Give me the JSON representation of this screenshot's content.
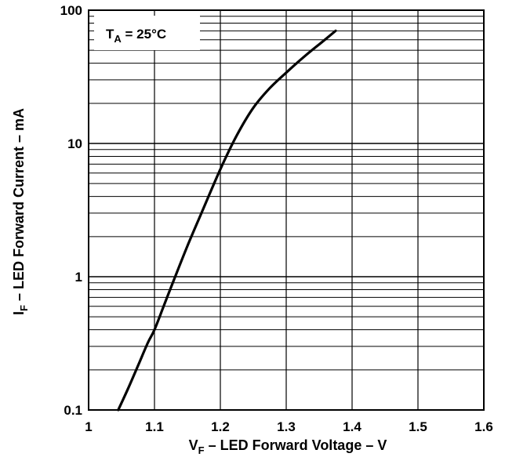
{
  "chart_data": {
    "type": "line",
    "xscale": "linear",
    "yscale": "log",
    "xlim": [
      1.0,
      1.6
    ],
    "ylim": [
      0.1,
      100
    ],
    "x_ticks": [
      1.0,
      1.1,
      1.2,
      1.3,
      1.4,
      1.5,
      1.6
    ],
    "x_tick_labels": [
      "1",
      "1.1",
      "1.2",
      "1.3",
      "1.4",
      "1.5",
      "1.6"
    ],
    "y_ticks": [
      0.1,
      1,
      10,
      100
    ],
    "y_tick_labels": [
      "0.1",
      "1",
      "10",
      "100"
    ],
    "grid": true,
    "xlabel": {
      "main": "V",
      "sub": "F",
      "rest": " – LED Forward Voltage – V"
    },
    "ylabel": {
      "main": "I",
      "sub": "F",
      "rest": " – LED Forward Current – mA"
    },
    "annotation": {
      "main": "T",
      "sub": "A",
      "rest": " = 25°C"
    },
    "series": [
      {
        "color": "#000000",
        "x": [
          1.045,
          1.06,
          1.075,
          1.09,
          1.1,
          1.115,
          1.13,
          1.15,
          1.17,
          1.2,
          1.225,
          1.25,
          1.275,
          1.3,
          1.33,
          1.355,
          1.375
        ],
        "y": [
          0.1,
          0.145,
          0.215,
          0.32,
          0.4,
          0.62,
          0.96,
          1.7,
          2.9,
          6.4,
          11.5,
          18.5,
          26,
          34,
          46,
          58,
          70
        ]
      }
    ]
  }
}
